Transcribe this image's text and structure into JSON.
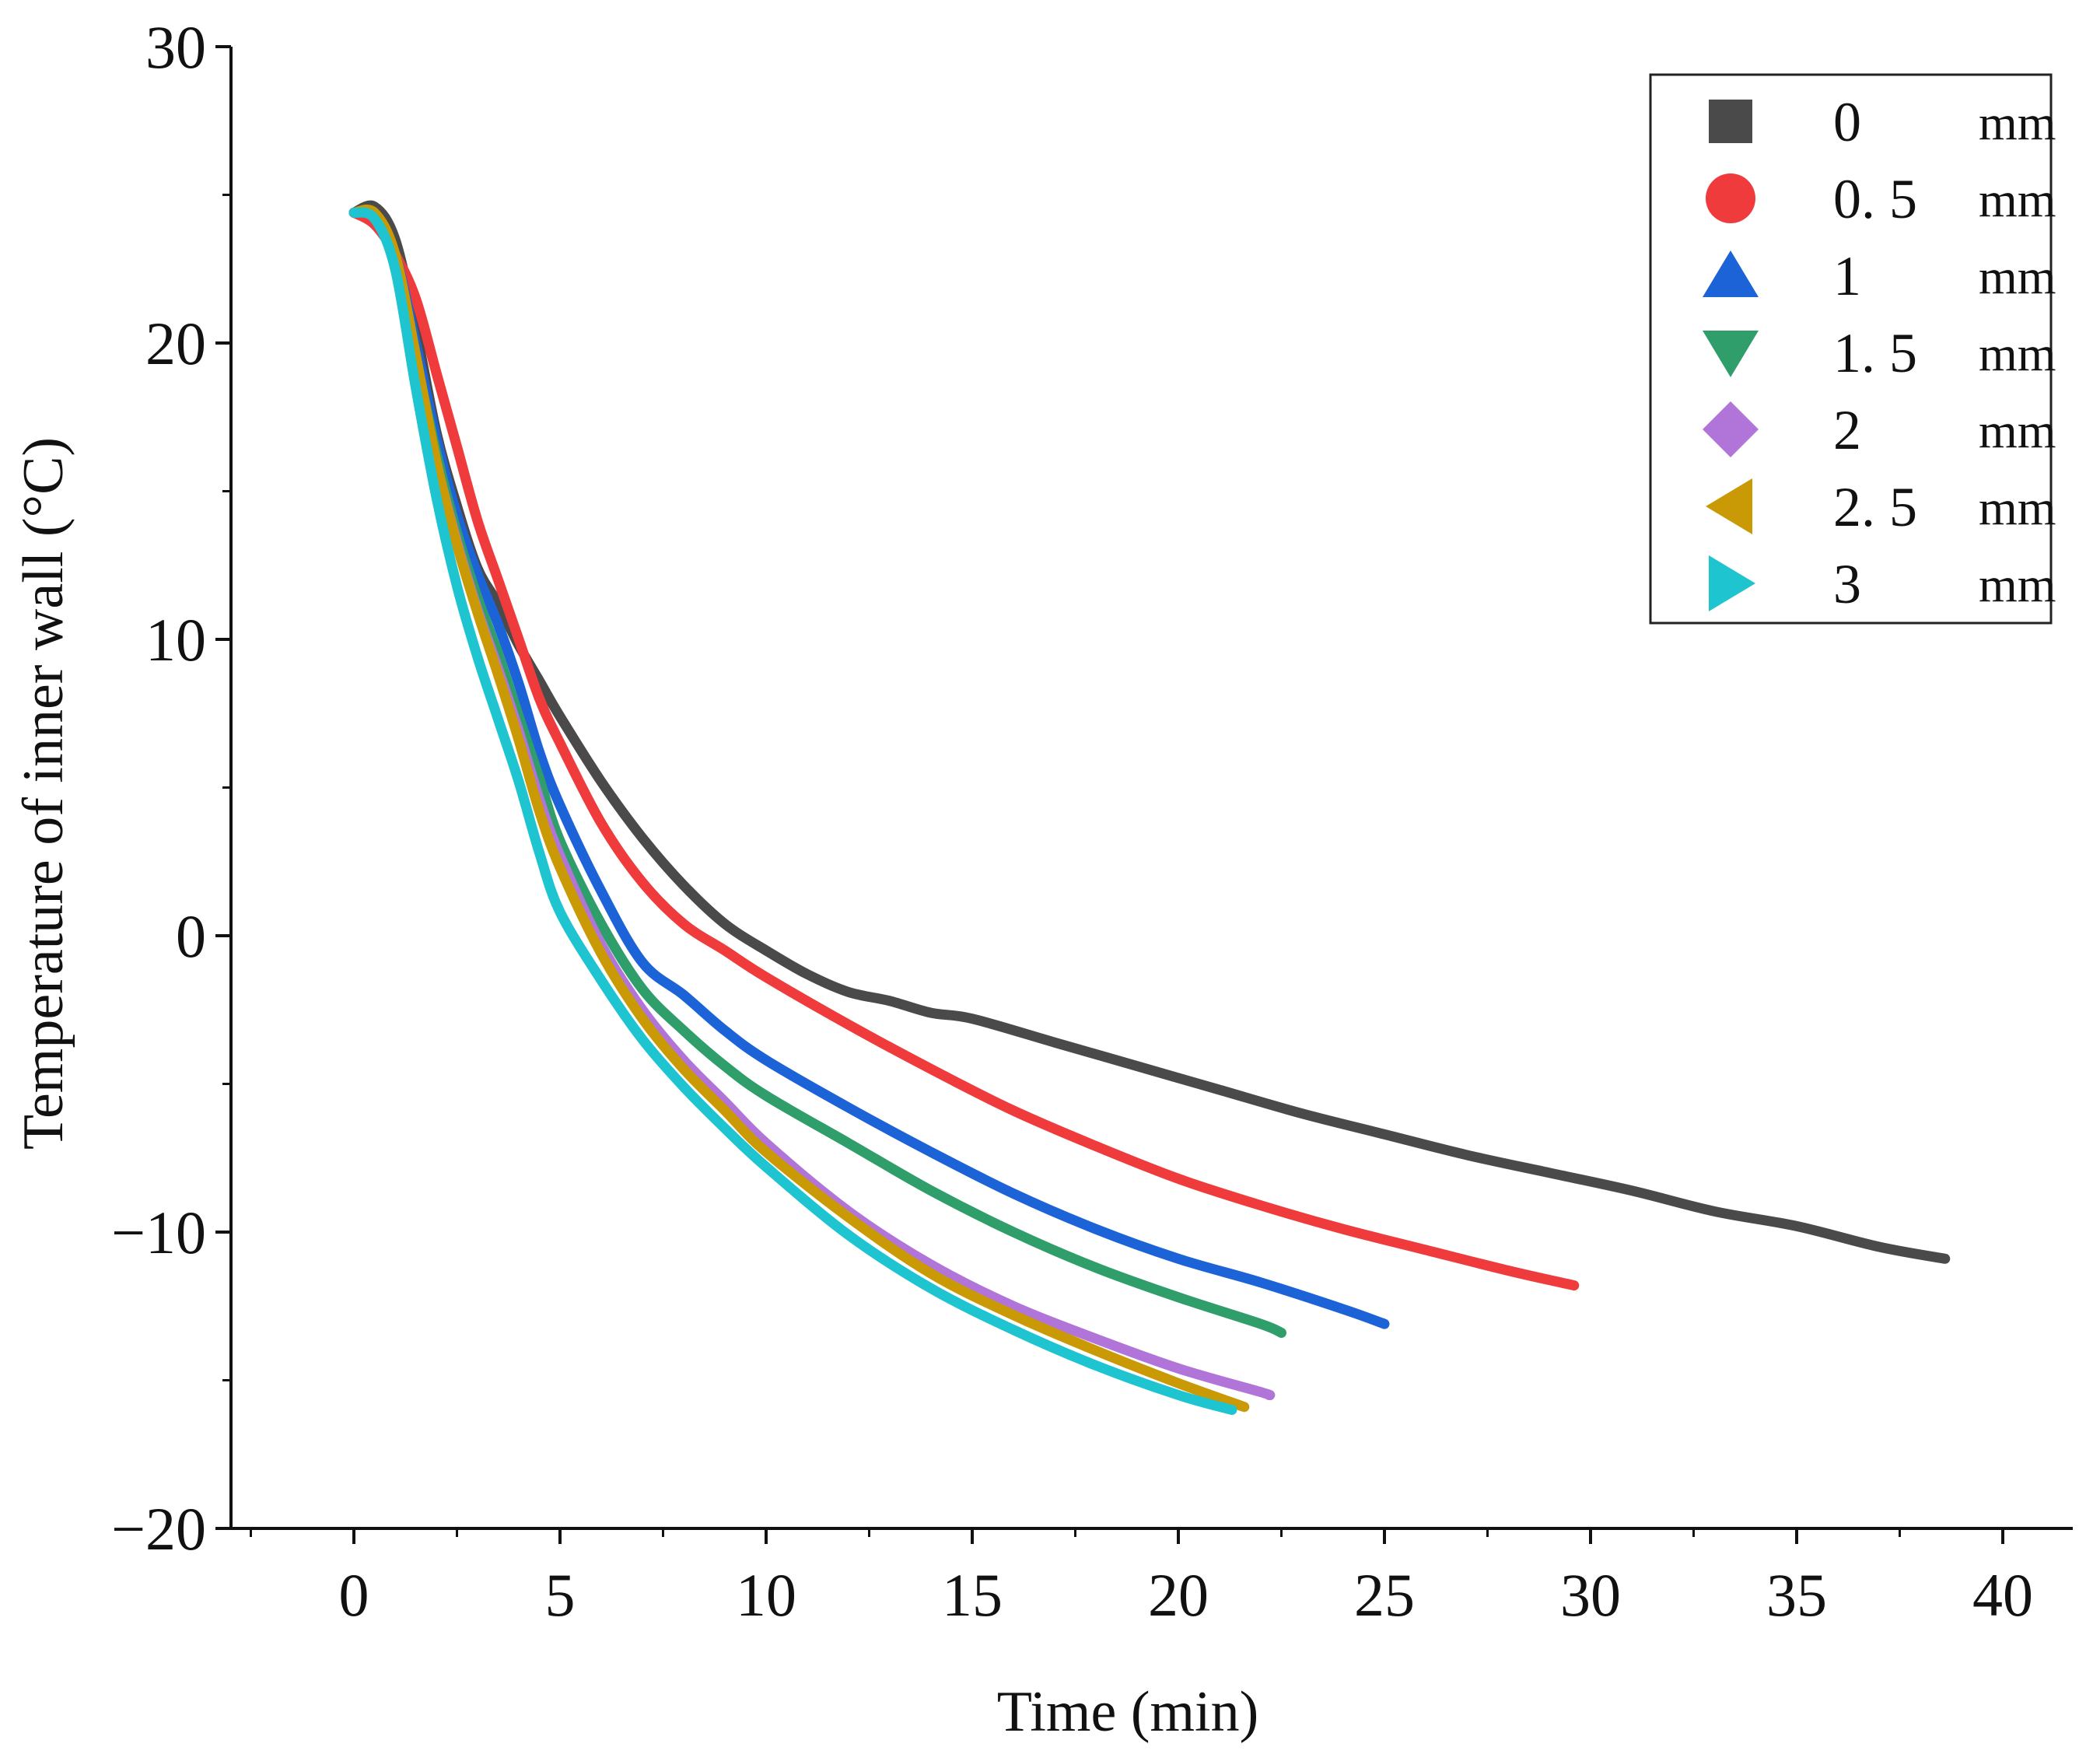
{
  "chart_data": {
    "type": "line",
    "title": "",
    "xlabel": "Time (min)",
    "ylabel": "Temperature of inner wall (°C)",
    "xlim": [
      -5,
      41.5
    ],
    "ylim": [
      -20,
      30
    ],
    "xticks": [
      0,
      5,
      10,
      15,
      20,
      25,
      30,
      35,
      40
    ],
    "xtick_labels": [
      "0",
      "5",
      "10",
      "15",
      "20",
      "25",
      "30",
      "35",
      "40"
    ],
    "yticks": [
      -20,
      -10,
      0,
      10,
      20,
      30
    ],
    "ytick_labels": [
      "−20",
      "−10",
      "0",
      "10",
      "20",
      "30"
    ],
    "legend_position": "top-right",
    "grid": false,
    "series": [
      {
        "name": "0 mm",
        "label": "0",
        "unit": "mm",
        "color": "#4a4a4a",
        "marker": "square",
        "x": [
          0,
          0.5,
          1,
          1.5,
          2,
          2.5,
          3,
          3.5,
          4,
          4.5,
          5,
          6,
          7,
          8,
          9,
          10,
          11,
          12,
          13,
          14,
          15,
          17,
          19,
          21,
          23,
          25,
          27,
          29,
          31,
          33,
          35,
          37,
          38.6
        ],
        "y": [
          24.4,
          24.6,
          23.5,
          20.5,
          17.0,
          14.5,
          12.4,
          11.2,
          9.8,
          8.6,
          7.4,
          5.2,
          3.3,
          1.7,
          0.4,
          -0.5,
          -1.3,
          -1.9,
          -2.2,
          -2.6,
          -2.8,
          -3.6,
          -4.4,
          -5.2,
          -6.0,
          -6.7,
          -7.4,
          -8.0,
          -8.6,
          -9.3,
          -9.8,
          -10.5,
          -10.9
        ]
      },
      {
        "name": "0.5 mm",
        "label": "0. 5",
        "unit": "mm",
        "color": "#ef3b3b",
        "marker": "circle",
        "x": [
          0,
          0.5,
          1,
          1.5,
          2,
          2.5,
          3,
          3.5,
          4,
          4.5,
          5,
          6,
          7,
          8,
          9,
          10,
          12,
          14,
          16,
          18,
          20,
          22,
          24,
          26,
          28,
          29.6
        ],
        "y": [
          24.4,
          24.0,
          23.0,
          21.5,
          19.0,
          16.5,
          14.0,
          12.0,
          10.0,
          8.0,
          6.5,
          3.8,
          1.8,
          0.4,
          -0.5,
          -1.4,
          -3.0,
          -4.5,
          -5.9,
          -7.1,
          -8.2,
          -9.1,
          -9.9,
          -10.6,
          -11.3,
          -11.8
        ]
      },
      {
        "name": "1 mm",
        "label": "1",
        "unit": "mm",
        "color": "#1d63d8",
        "marker": "triangle-up",
        "x": [
          0,
          0.5,
          1,
          1.5,
          2,
          2.5,
          3,
          3.5,
          4,
          4.5,
          5,
          6,
          7,
          8,
          9,
          10,
          12,
          14,
          16,
          18,
          20,
          22,
          24,
          25
        ],
        "y": [
          24.4,
          24.3,
          23.0,
          20.0,
          16.8,
          14.2,
          12.2,
          10.5,
          8.5,
          6.2,
          4.4,
          1.5,
          -0.9,
          -2.0,
          -3.2,
          -4.2,
          -5.8,
          -7.3,
          -8.7,
          -9.9,
          -10.9,
          -11.7,
          -12.6,
          -13.1
        ]
      },
      {
        "name": "1.5 mm",
        "label": "1. 5",
        "unit": "mm",
        "color": "#2f9e6a",
        "marker": "triangle-down",
        "x": [
          0,
          0.5,
          1,
          1.5,
          2,
          2.5,
          3,
          3.5,
          4,
          4.5,
          5,
          6,
          7,
          8,
          9,
          10,
          12,
          14,
          16,
          18,
          20,
          22,
          22.5
        ],
        "y": [
          24.4,
          24.3,
          22.8,
          19.5,
          16.3,
          13.6,
          11.4,
          9.5,
          7.4,
          5.3,
          3.2,
          0.4,
          -1.8,
          -3.2,
          -4.4,
          -5.4,
          -7.0,
          -8.6,
          -10.0,
          -11.2,
          -12.2,
          -13.1,
          -13.4
        ]
      },
      {
        "name": "2 mm",
        "label": "2",
        "unit": "mm",
        "color": "#b174d9",
        "marker": "diamond",
        "x": [
          0,
          0.5,
          1,
          1.5,
          2,
          2.5,
          3,
          3.5,
          4,
          4.5,
          5,
          6,
          7,
          8,
          9,
          10,
          12,
          14,
          16,
          18,
          20,
          22,
          22.2
        ],
        "y": [
          24.4,
          24.3,
          22.8,
          19.5,
          16.0,
          13.3,
          11.0,
          9.0,
          6.9,
          4.6,
          2.7,
          -0.3,
          -2.5,
          -4.2,
          -5.6,
          -7.0,
          -9.3,
          -11.1,
          -12.5,
          -13.6,
          -14.6,
          -15.4,
          -15.5
        ]
      },
      {
        "name": "2.5 mm",
        "label": "2. 5",
        "unit": "mm",
        "color": "#c99a06",
        "marker": "triangle-left",
        "x": [
          0,
          0.5,
          1,
          1.5,
          2,
          2.5,
          3,
          3.5,
          4,
          4.5,
          5,
          6,
          7,
          8,
          9,
          10,
          12,
          14,
          16,
          18,
          20,
          21.6
        ],
        "y": [
          24.4,
          24.4,
          23.0,
          19.6,
          16.0,
          13.2,
          10.9,
          8.8,
          6.6,
          4.2,
          2.3,
          -0.6,
          -2.8,
          -4.5,
          -5.9,
          -7.3,
          -9.5,
          -11.4,
          -12.8,
          -14.0,
          -15.1,
          -15.9
        ]
      },
      {
        "name": "3 mm",
        "label": "3",
        "unit": "mm",
        "color": "#1ec4cf",
        "marker": "triangle-right",
        "x": [
          0,
          0.5,
          1,
          1.5,
          2,
          2.5,
          3,
          3.5,
          4,
          4.5,
          5,
          6,
          7,
          8,
          9,
          10,
          12,
          14,
          16,
          18,
          20,
          21.3
        ],
        "y": [
          24.4,
          24.2,
          22.5,
          18.5,
          14.8,
          11.8,
          9.4,
          7.3,
          5.2,
          2.8,
          0.8,
          -1.5,
          -3.5,
          -5.1,
          -6.5,
          -7.8,
          -10.1,
          -11.9,
          -13.3,
          -14.5,
          -15.5,
          -16.0
        ]
      }
    ]
  }
}
